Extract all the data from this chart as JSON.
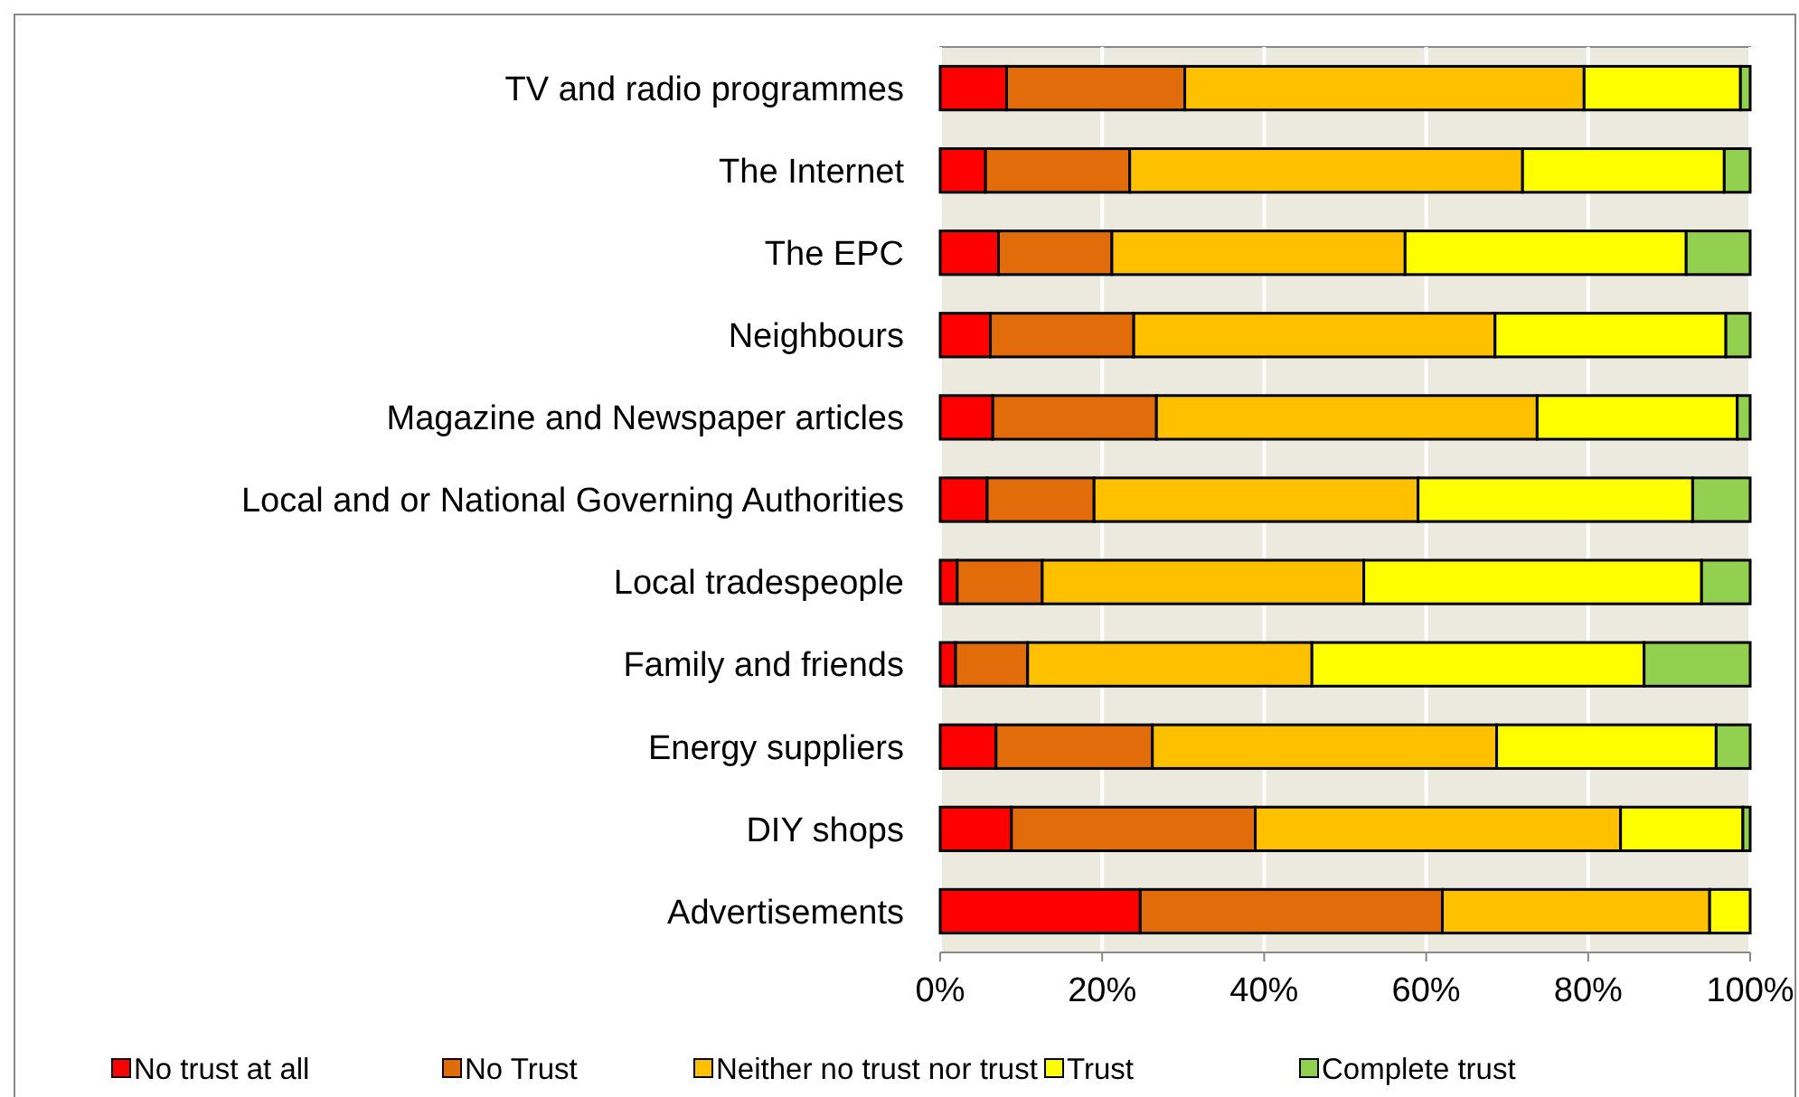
{
  "chart_data": {
    "type": "bar",
    "orientation": "horizontal",
    "stacked": true,
    "categories": [
      "TV and radio programmes",
      "The Internet",
      "The EPC",
      "Neighbours",
      "Magazine and Newspaper articles",
      "Local and or National Governing Authorities",
      "Local tradespeople",
      "Family and friends",
      "Energy suppliers",
      "DIY shops",
      "Advertisements"
    ],
    "series": [
      {
        "name": "No trust at all",
        "color": "#ff0000",
        "values": [
          8.2,
          5.6,
          7.2,
          6.2,
          6.5,
          5.8,
          2.1,
          1.9,
          6.9,
          8.8,
          24.7
        ]
      },
      {
        "name": "No Trust",
        "color": "#e36c0a",
        "values": [
          22.0,
          17.8,
          14.0,
          17.7,
          20.2,
          13.2,
          10.5,
          8.9,
          19.3,
          30.1,
          37.3
        ]
      },
      {
        "name": "Neither no trust nor trust",
        "color": "#ffc000",
        "values": [
          49.3,
          48.5,
          36.2,
          44.6,
          47.0,
          40.0,
          39.7,
          35.1,
          42.5,
          45.1,
          33.0
        ]
      },
      {
        "name": "Trust",
        "color": "#ffff00",
        "values": [
          19.3,
          24.9,
          34.7,
          28.5,
          24.7,
          33.9,
          41.7,
          41.0,
          27.1,
          15.1,
          5.0
        ]
      },
      {
        "name": "Complete trust",
        "color": "#92d050",
        "values": [
          1.2,
          3.2,
          7.9,
          3.0,
          1.6,
          7.1,
          6.0,
          13.1,
          4.2,
          0.9,
          0
        ]
      }
    ],
    "xlim": [
      0,
      100
    ],
    "xticks": [
      {
        "value": 0,
        "label": "0%"
      },
      {
        "value": 20,
        "label": "20%"
      },
      {
        "value": 40,
        "label": "40%"
      },
      {
        "value": 60,
        "label": "60%"
      },
      {
        "value": 80,
        "label": "80%"
      },
      {
        "value": 100,
        "label": "100%"
      }
    ],
    "grid": "x",
    "legend": "bottom"
  }
}
